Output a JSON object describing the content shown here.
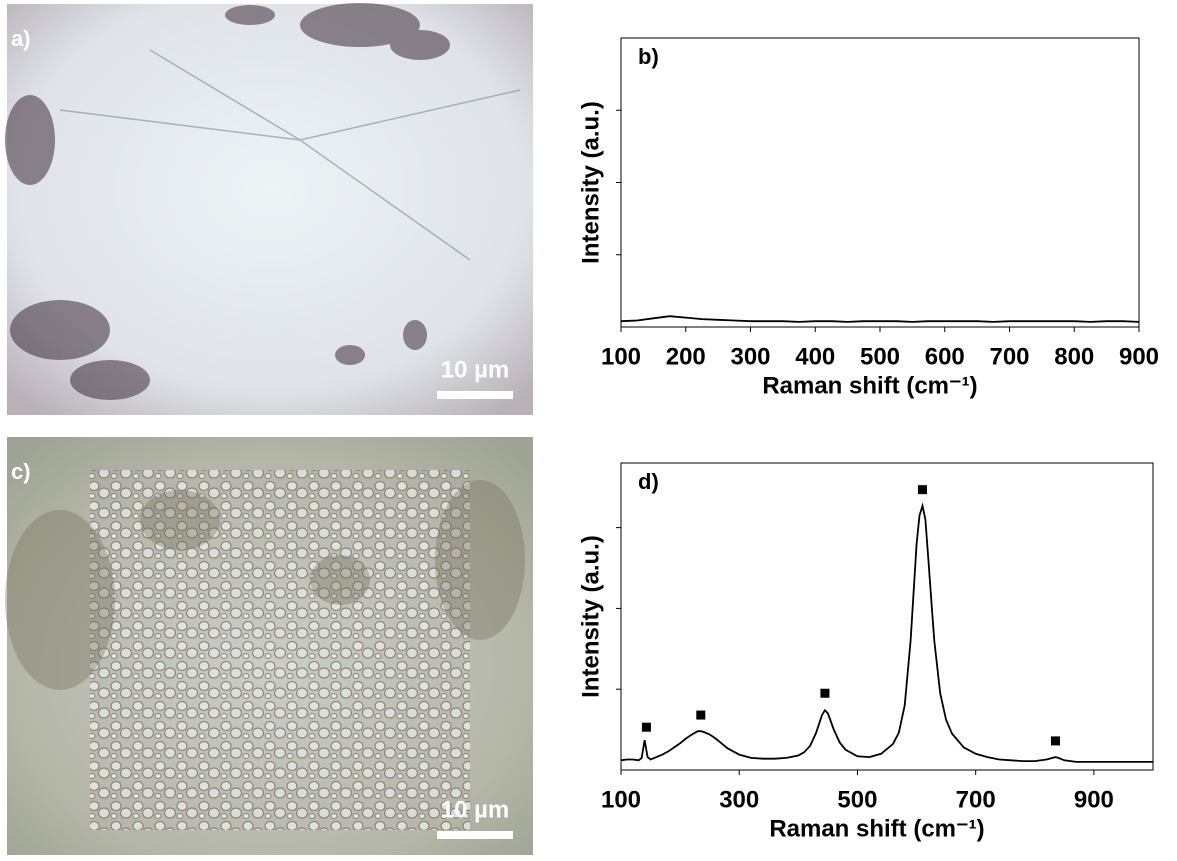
{
  "panels": [
    {
      "label": "a)",
      "scale_bar": "10 µm"
    },
    {
      "label": "c)",
      "scale_bar": "10 µm"
    }
  ],
  "chart_data": [
    {
      "type": "line",
      "panel_label": "b)",
      "xlabel": "Raman shift (cm⁻¹)",
      "ylabel": "Intensity (a.u.)",
      "color": "#000000",
      "x": [
        100,
        125,
        150,
        175,
        200,
        225,
        250,
        275,
        300,
        325,
        350,
        375,
        400,
        425,
        450,
        475,
        500,
        525,
        550,
        575,
        600,
        625,
        650,
        675,
        700,
        725,
        750,
        775,
        800,
        825,
        850,
        875,
        900
      ],
      "values": [
        0.08,
        0.09,
        0.12,
        0.15,
        0.13,
        0.11,
        0.1,
        0.09,
        0.08,
        0.08,
        0.08,
        0.07,
        0.08,
        0.08,
        0.07,
        0.08,
        0.08,
        0.08,
        0.07,
        0.08,
        0.08,
        0.08,
        0.08,
        0.07,
        0.08,
        0.08,
        0.08,
        0.08,
        0.08,
        0.07,
        0.08,
        0.08,
        0.07
      ],
      "xlim": [
        100,
        900
      ],
      "xticks": [
        100,
        200,
        300,
        400,
        500,
        600,
        700,
        800,
        900
      ],
      "ylim": [
        0,
        4
      ],
      "yticks": [
        1,
        2,
        3
      ],
      "ytick_labels": false
    },
    {
      "type": "line",
      "panel_label": "d)",
      "xlabel": "Raman shift (cm⁻¹)",
      "ylabel": "Intensity (a.u.)",
      "color": "#000000",
      "x": [
        100,
        110,
        120,
        130,
        135,
        140,
        145,
        150,
        160,
        170,
        180,
        190,
        200,
        210,
        220,
        230,
        235,
        240,
        250,
        260,
        270,
        280,
        290,
        300,
        320,
        340,
        360,
        380,
        400,
        410,
        420,
        430,
        440,
        445,
        450,
        460,
        470,
        480,
        500,
        520,
        540,
        560,
        570,
        580,
        590,
        595,
        600,
        605,
        610,
        615,
        620,
        625,
        630,
        640,
        650,
        660,
        680,
        700,
        720,
        740,
        760,
        780,
        800,
        820,
        830,
        835,
        840,
        850,
        870,
        900,
        950,
        1000
      ],
      "values": [
        0.12,
        0.13,
        0.13,
        0.12,
        0.15,
        0.37,
        0.16,
        0.13,
        0.16,
        0.19,
        0.23,
        0.28,
        0.33,
        0.39,
        0.44,
        0.48,
        0.48,
        0.47,
        0.44,
        0.39,
        0.33,
        0.27,
        0.23,
        0.19,
        0.15,
        0.14,
        0.14,
        0.15,
        0.18,
        0.22,
        0.3,
        0.46,
        0.68,
        0.74,
        0.7,
        0.5,
        0.34,
        0.25,
        0.17,
        0.16,
        0.2,
        0.32,
        0.46,
        0.8,
        1.6,
        2.2,
        2.8,
        3.15,
        3.27,
        3.1,
        2.6,
        2.1,
        1.6,
        0.95,
        0.62,
        0.45,
        0.28,
        0.2,
        0.16,
        0.13,
        0.12,
        0.11,
        0.11,
        0.13,
        0.15,
        0.16,
        0.15,
        0.12,
        0.1,
        0.1,
        0.1,
        0.1
      ],
      "markers": {
        "x": [
          143,
          235,
          445,
          610,
          835
        ],
        "values": [
          0.53,
          0.68,
          0.95,
          3.47,
          0.36
        ]
      },
      "xlim": [
        100,
        1000
      ],
      "xticks": [
        100,
        300,
        500,
        700,
        900
      ],
      "ylim": [
        0,
        3.8
      ],
      "yticks": [
        1,
        2,
        3
      ],
      "ytick_labels": false
    }
  ]
}
